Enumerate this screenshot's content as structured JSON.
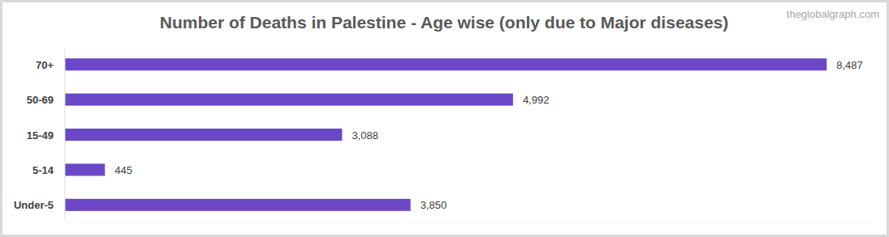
{
  "chart_data": {
    "type": "bar",
    "orientation": "horizontal",
    "title": "Number of Deaths in Palestine - Age wise (only due to Major diseases)",
    "annotations": [
      "theglobalgraph.com"
    ],
    "categories": [
      "70+",
      "50-69",
      "15-49",
      "5-14",
      "Under-5"
    ],
    "values": [
      8487,
      4992,
      3088,
      445,
      3850
    ],
    "value_labels": [
      "8,487",
      "4,992",
      "3,088",
      "445",
      "3,850"
    ],
    "color": "#6a48c8",
    "xlim": [
      0,
      9000
    ],
    "data_labels": true,
    "tick_labels": "y",
    "grid": false
  }
}
